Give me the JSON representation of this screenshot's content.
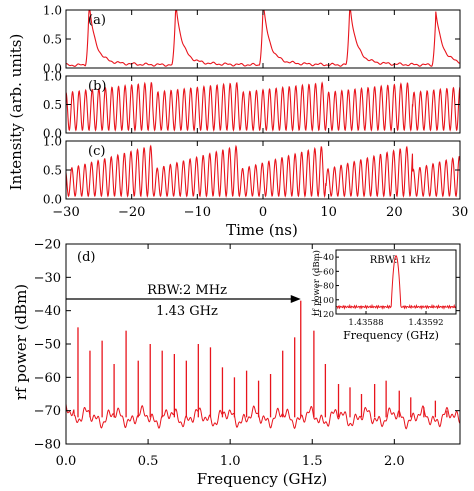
{
  "chart_data": [
    {
      "type": "line",
      "panel_label": "(a)",
      "ylabel_shared": "Intensity (arb. units)",
      "ylim": [
        0,
        1.0
      ],
      "yticks": [
        "0.0",
        "0.5",
        "1.0"
      ],
      "xlim": [
        -30,
        30
      ],
      "xlabel": "Time (ns)",
      "xticks": [
        "−30",
        "−20",
        "−10",
        "0",
        "10",
        "20",
        "30"
      ],
      "series": [
        {
          "pulse_times_ns": [
            -26.5,
            -13.3,
            0.0,
            13.2,
            26.3
          ],
          "pulse_peaks": [
            0.97,
            0.98,
            0.98,
            0.97,
            0.82
          ],
          "baseline": 0.05
        }
      ]
    },
    {
      "type": "line",
      "panel_label": "(b)",
      "ylim": [
        0,
        1.0
      ],
      "yticks": [
        "0.0",
        "0.5",
        "1.0"
      ],
      "xlim": [
        -30,
        30
      ],
      "series": [
        {
          "oscillation_period_ns": 1.0,
          "envelope_period_ns": 13.2,
          "max": 0.93,
          "min": 0.05
        }
      ]
    },
    {
      "type": "line",
      "panel_label": "(c)",
      "ylim": [
        0,
        1.0
      ],
      "yticks": [
        "0.0",
        "0.5",
        "1.0"
      ],
      "xlim": [
        -30,
        30
      ],
      "series": [
        {
          "oscillation_period_ns": 1.0,
          "envelope_period_ns": 13.2,
          "max": 0.97,
          "min": 0.05
        }
      ]
    },
    {
      "type": "line",
      "panel_label": "(d)",
      "xlabel": "Frequency (GHz)",
      "ylabel": "rf power (dBm)",
      "xlim": [
        0,
        2.4
      ],
      "ylim": [
        -80,
        -20
      ],
      "xticks": [
        "0.0",
        "0.5",
        "1.0",
        "1.5",
        "2.0"
      ],
      "yticks": [
        "−20",
        "−30",
        "−40",
        "−50",
        "−60",
        "−70",
        "−80"
      ],
      "annotation_rbw": "RBW:2 MHz",
      "annotation_freq": "1.43 GHz",
      "noise_floor_dbm": -72,
      "peaks": [
        {
          "f": 0.073,
          "p": -45
        },
        {
          "f": 0.146,
          "p": -52
        },
        {
          "f": 0.22,
          "p": -49
        },
        {
          "f": 0.293,
          "p": -56
        },
        {
          "f": 0.366,
          "p": -46
        },
        {
          "f": 0.44,
          "p": -55
        },
        {
          "f": 0.513,
          "p": -50
        },
        {
          "f": 0.586,
          "p": -52
        },
        {
          "f": 0.66,
          "p": -53
        },
        {
          "f": 0.733,
          "p": -55
        },
        {
          "f": 0.806,
          "p": -50
        },
        {
          "f": 0.88,
          "p": -51
        },
        {
          "f": 0.953,
          "p": -57
        },
        {
          "f": 1.026,
          "p": -60
        },
        {
          "f": 1.1,
          "p": -58
        },
        {
          "f": 1.173,
          "p": -61
        },
        {
          "f": 1.246,
          "p": -59
        },
        {
          "f": 1.32,
          "p": -52
        },
        {
          "f": 1.393,
          "p": -48
        },
        {
          "f": 1.43,
          "p": -37
        },
        {
          "f": 1.51,
          "p": -46
        },
        {
          "f": 1.58,
          "p": -56
        },
        {
          "f": 1.66,
          "p": -62
        },
        {
          "f": 1.73,
          "p": -63
        },
        {
          "f": 1.8,
          "p": -65
        },
        {
          "f": 1.88,
          "p": -62
        },
        {
          "f": 1.95,
          "p": -61
        },
        {
          "f": 2.03,
          "p": -64
        },
        {
          "f": 2.1,
          "p": -66
        },
        {
          "f": 2.18,
          "p": -69
        },
        {
          "f": 2.25,
          "p": -67
        },
        {
          "f": 2.32,
          "p": -70
        }
      ],
      "inset": {
        "annotation": "RBW: 1 kHz",
        "xlabel": "Frequency (GHz)",
        "ylabel": "rf power (dBm)",
        "xticks": [
          "1.43588",
          "1.43592"
        ],
        "yticks": [
          "−40",
          "−60",
          "−80",
          "−100",
          "−120"
        ],
        "xlim": [
          1.43586,
          1.43594
        ],
        "ylim": [
          -120,
          -30
        ],
        "peak": {
          "f": 1.4359,
          "p": -38
        },
        "noise_floor_dbm": -110
      }
    }
  ],
  "colors": {
    "trace": "#e8141c",
    "axis": "#000000"
  }
}
